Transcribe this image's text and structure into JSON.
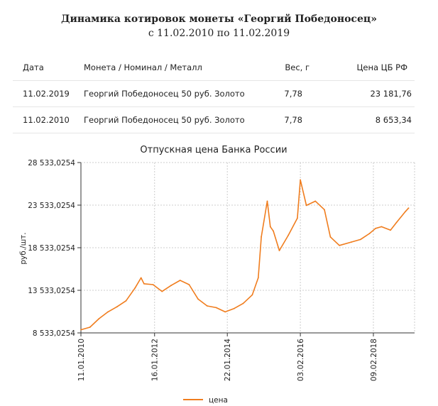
{
  "header": {
    "title": "Динамика котировок монеты «Георгий Победоносец»",
    "subtitle": "с 11.02.2010 по 11.02.2019"
  },
  "table": {
    "columns": [
      "Дата",
      "Монета / Номинал / Металл",
      "Вес, г",
      "Цена ЦБ РФ"
    ],
    "rows": [
      [
        "11.02.2019",
        "Георгий Победоносец 50 руб. Золото",
        "7,78",
        "23 181,76"
      ],
      [
        "11.02.2010",
        "Георгий Победоносец 50 руб. Золото",
        "7,78",
        "8 653,34"
      ]
    ]
  },
  "chart_data": {
    "type": "line",
    "title": "Отпускная цена Банка России",
    "xlabel": "",
    "ylabel": "руб./шт.",
    "ylim": [
      8533.0254,
      28533.0254
    ],
    "yticks": [
      "8 533,0254",
      "13 533,0254",
      "18 533,0254",
      "23 533,0254",
      "28 533,0254"
    ],
    "xticks": [
      "11.01.2010",
      "16.01.2012",
      "22.01.2014",
      "03.02.2016",
      "09.02.2018"
    ],
    "grid": true,
    "legend_position": "bottom",
    "colors": {
      "series": "#f07d1e",
      "grid": "#cccccc",
      "axis": "#333333"
    },
    "series": [
      {
        "name": "цена",
        "x": [
          "2010-01",
          "2010-04",
          "2010-07",
          "2010-10",
          "2011-01",
          "2011-04",
          "2011-07",
          "2011-09",
          "2011-10",
          "2012-01",
          "2012-04",
          "2012-07",
          "2012-10",
          "2013-01",
          "2013-04",
          "2013-07",
          "2013-10",
          "2014-01",
          "2014-04",
          "2014-07",
          "2014-10",
          "2014-12",
          "2015-01",
          "2015-03",
          "2015-04",
          "2015-05",
          "2015-07",
          "2015-10",
          "2016-01",
          "2016-02",
          "2016-04",
          "2016-07",
          "2016-10",
          "2016-12",
          "2017-03",
          "2017-07",
          "2017-10",
          "2018-01",
          "2018-03",
          "2018-05",
          "2018-08",
          "2018-10",
          "2019-01",
          "2019-02"
        ],
        "values": [
          8900,
          9200,
          10200,
          11000,
          11600,
          12300,
          13800,
          15000,
          14300,
          14200,
          13400,
          14100,
          14700,
          14200,
          12500,
          11700,
          11500,
          11000,
          11400,
          12000,
          13000,
          15000,
          19800,
          24000,
          21000,
          20500,
          18200,
          20000,
          22000,
          26500,
          23500,
          24000,
          23000,
          19800,
          18800,
          19200,
          19500,
          20200,
          20800,
          21000,
          20600,
          21500,
          22800,
          23182
        ]
      }
    ]
  }
}
